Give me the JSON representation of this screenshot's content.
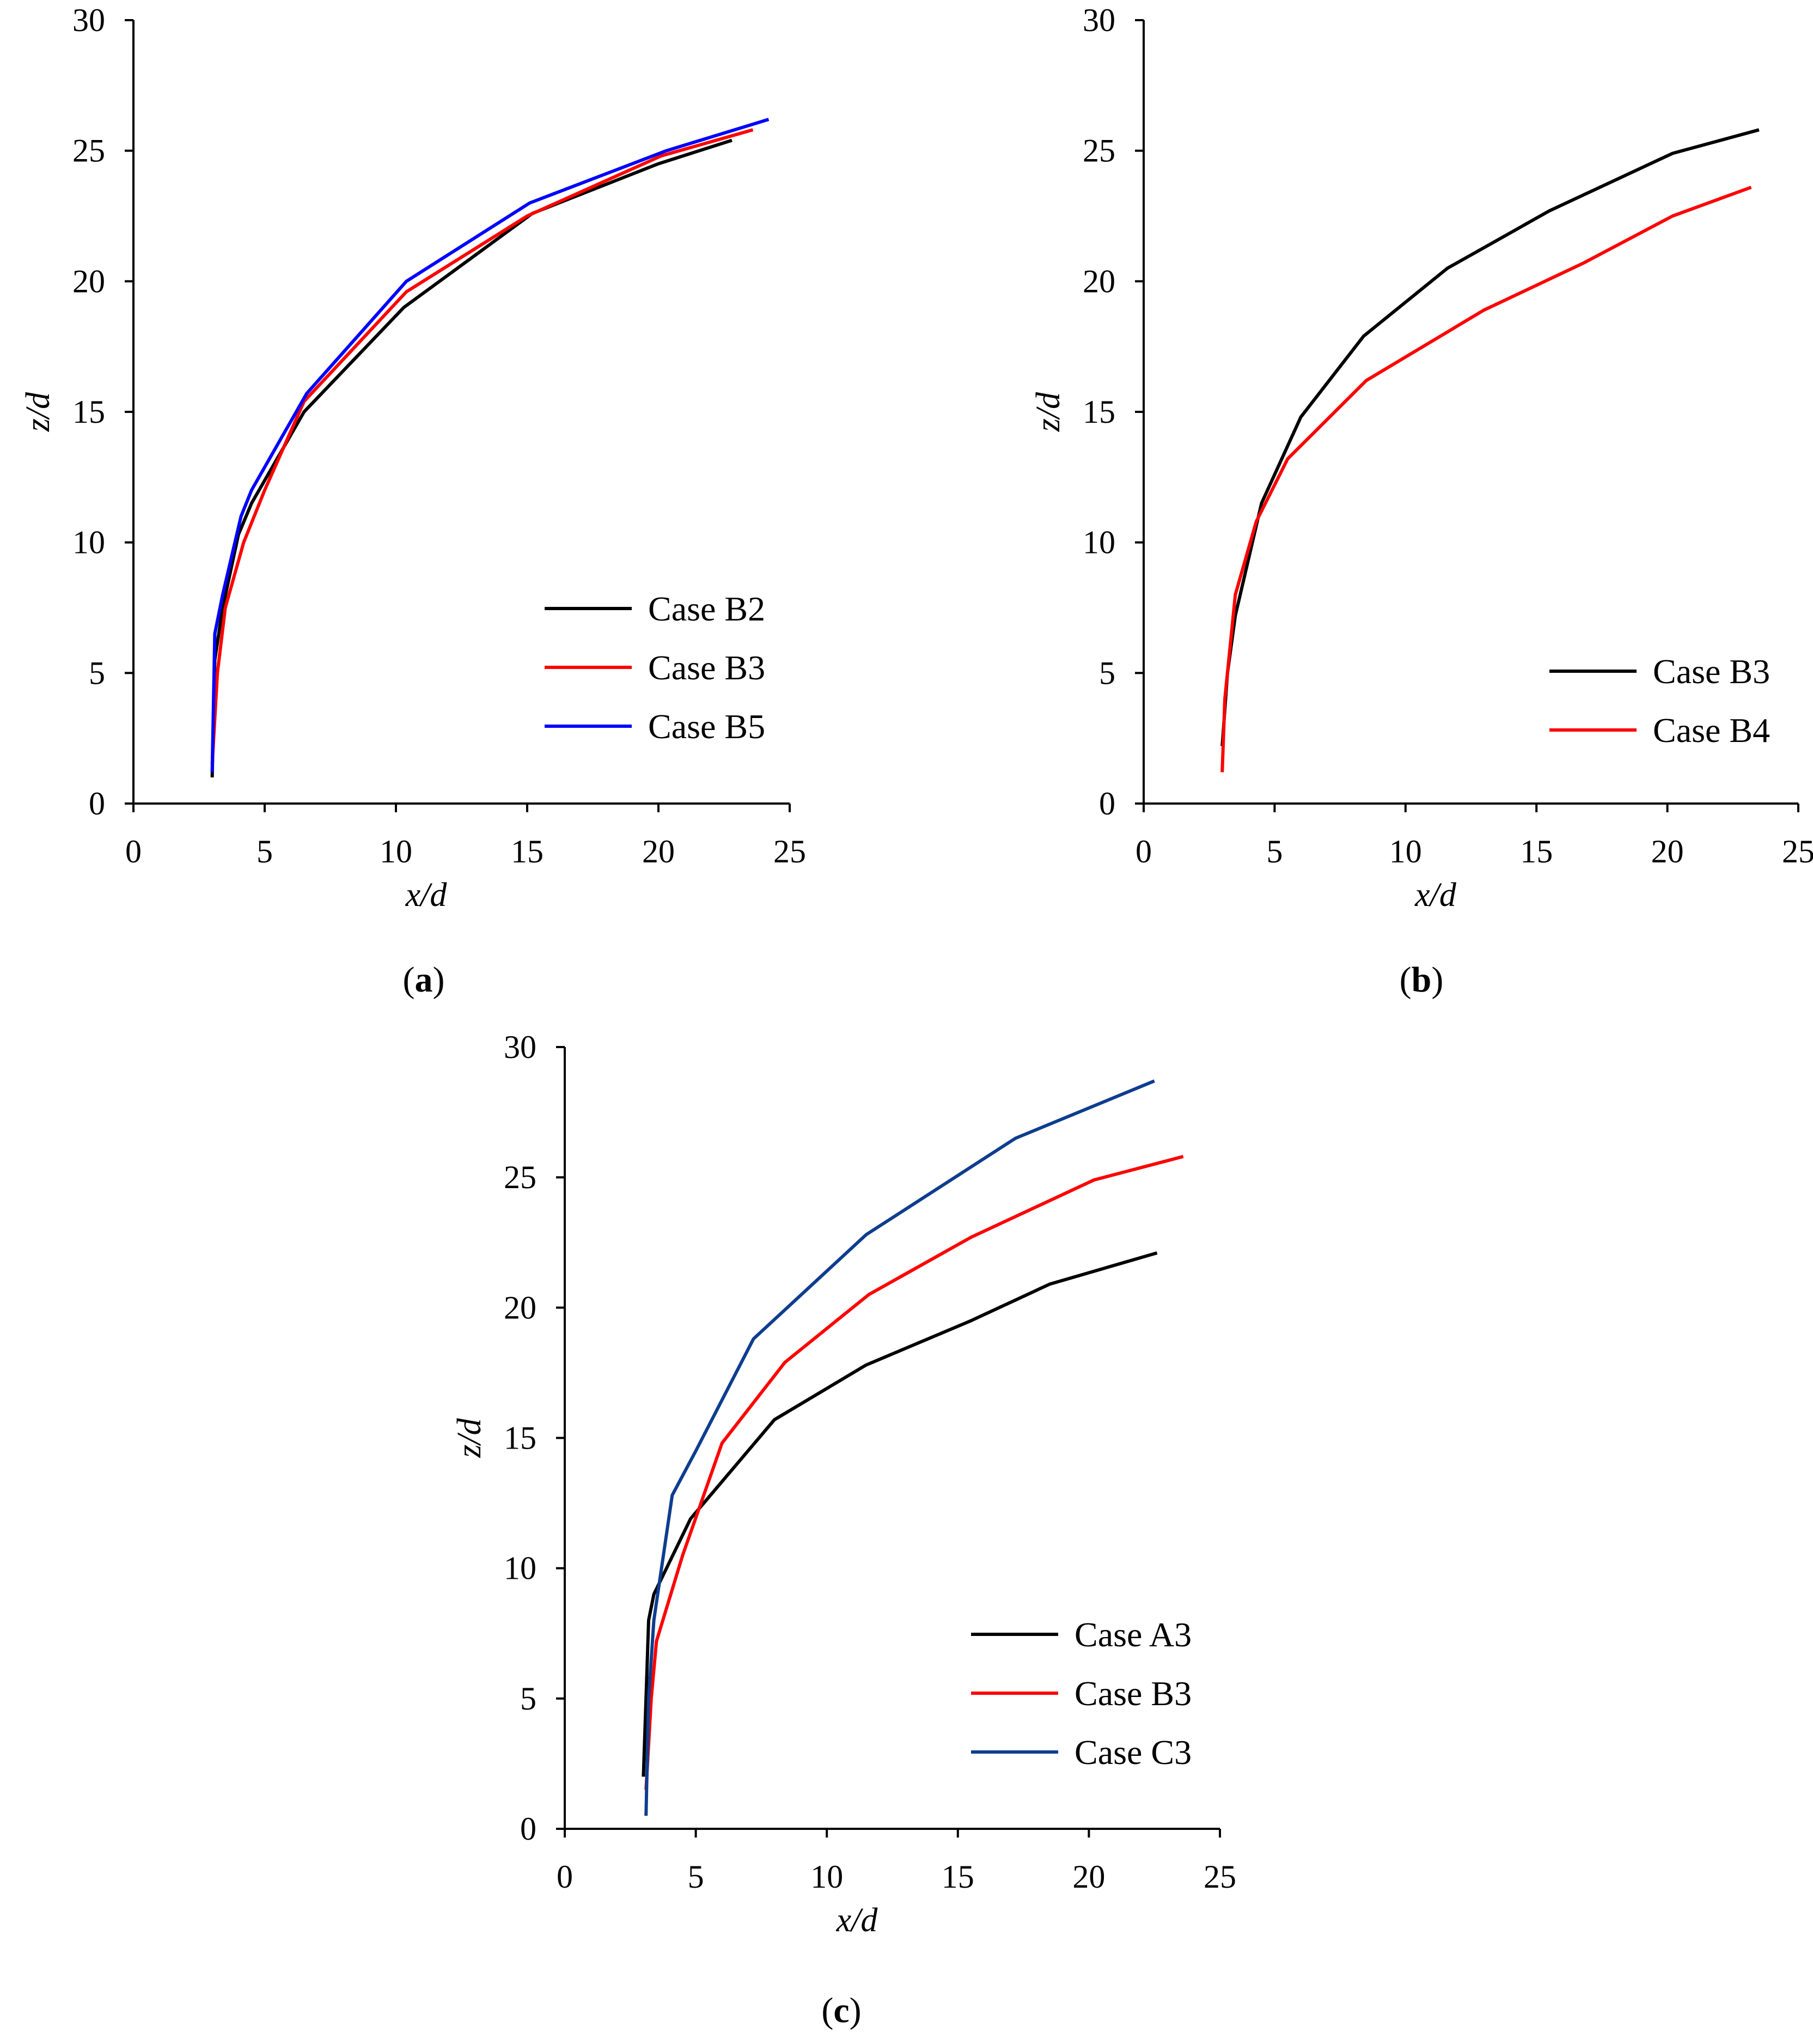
{
  "chart_data": [
    {
      "type": "line",
      "panel_label": "a",
      "xlabel": "x/d",
      "ylabel": "z/d",
      "xlim": [
        0,
        25
      ],
      "ylim": [
        0,
        30
      ],
      "xticks": [
        0,
        5,
        10,
        15,
        20,
        25
      ],
      "yticks": [
        0,
        5,
        10,
        15,
        20,
        25,
        30
      ],
      "legend_position": "lower-right",
      "series": [
        {
          "name": "Case B2",
          "color": "#000000",
          "x": [
            3.0,
            3.1,
            3.4,
            4.0,
            4.5,
            6.5,
            10.3,
            15.2,
            20.0,
            22.8
          ],
          "y": [
            1.0,
            5.5,
            7.5,
            10.3,
            11.5,
            15.0,
            19.0,
            22.6,
            24.5,
            25.4
          ]
        },
        {
          "name": "Case B3",
          "color": "#ff0000",
          "x": [
            3.0,
            3.2,
            3.5,
            4.2,
            5.0,
            6.5,
            10.4,
            15.0,
            20.1,
            23.6
          ],
          "y": [
            1.5,
            5.0,
            7.5,
            10.0,
            12.0,
            15.4,
            19.6,
            22.5,
            24.8,
            25.8
          ]
        },
        {
          "name": "Case B5",
          "color": "#0000ff",
          "x": [
            3.0,
            3.1,
            3.4,
            4.1,
            4.5,
            6.6,
            10.4,
            15.1,
            20.3,
            24.2
          ],
          "y": [
            1.2,
            6.5,
            8.0,
            11.0,
            12.0,
            15.7,
            20.0,
            23.0,
            25.0,
            26.2
          ]
        }
      ]
    },
    {
      "type": "line",
      "panel_label": "b",
      "xlabel": "x/d",
      "ylabel": "z/d",
      "xlim": [
        0,
        25
      ],
      "ylim": [
        0,
        30
      ],
      "xticks": [
        0,
        5,
        10,
        15,
        20,
        25
      ],
      "yticks": [
        0,
        5,
        10,
        15,
        20,
        25,
        30
      ],
      "legend_position": "lower-right",
      "series": [
        {
          "name": "Case B3",
          "color": "#000000",
          "x": [
            3.0,
            3.2,
            3.5,
            4.5,
            6.0,
            8.4,
            11.6,
            15.5,
            20.2,
            23.5
          ],
          "y": [
            2.2,
            5.0,
            7.2,
            11.5,
            14.8,
            17.9,
            20.5,
            22.7,
            24.9,
            25.8
          ]
        },
        {
          "name": "Case B4",
          "color": "#ff0000",
          "x": [
            3.0,
            3.1,
            3.5,
            4.3,
            5.5,
            8.5,
            13.0,
            16.8,
            20.2,
            23.2
          ],
          "y": [
            1.2,
            4.0,
            8.0,
            10.8,
            13.2,
            16.2,
            18.9,
            20.7,
            22.5,
            23.6
          ]
        }
      ]
    },
    {
      "type": "line",
      "panel_label": "c",
      "xlabel": "x/d",
      "ylabel": "z/d",
      "xlim": [
        0,
        25
      ],
      "ylim": [
        0,
        30
      ],
      "xticks": [
        0,
        5,
        10,
        15,
        20,
        25
      ],
      "yticks": [
        0,
        5,
        10,
        15,
        20,
        25,
        30
      ],
      "legend_position": "lower-right",
      "series": [
        {
          "name": "Case A3",
          "color": "#000000",
          "x": [
            3.0,
            3.2,
            3.4,
            4.8,
            8.0,
            11.5,
            15.5,
            18.5,
            22.6
          ],
          "y": [
            2.0,
            8.0,
            9.0,
            11.9,
            15.7,
            17.8,
            19.5,
            20.9,
            22.1
          ]
        },
        {
          "name": "Case B3",
          "color": "#ff0000",
          "x": [
            3.1,
            3.3,
            3.5,
            4.5,
            6.0,
            8.4,
            11.6,
            15.5,
            20.2,
            23.6
          ],
          "y": [
            1.5,
            5.0,
            7.2,
            10.5,
            14.8,
            17.9,
            20.5,
            22.7,
            24.9,
            25.8
          ]
        },
        {
          "name": "Case C3",
          "color": "#0d3d8f",
          "x": [
            3.1,
            3.2,
            3.4,
            4.1,
            5.0,
            7.2,
            11.5,
            17.2,
            22.5
          ],
          "y": [
            0.5,
            5.0,
            8.0,
            12.8,
            14.5,
            18.8,
            22.8,
            26.5,
            28.7
          ]
        }
      ]
    }
  ]
}
